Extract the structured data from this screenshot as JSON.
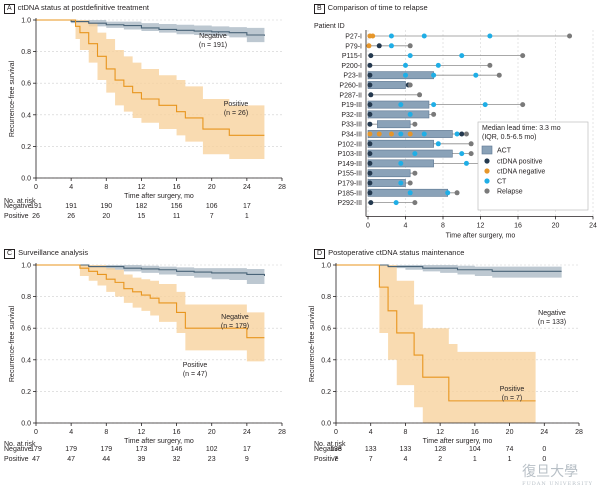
{
  "panels": {
    "A": {
      "letter": "A",
      "title": "ctDNA status at postdefinitive treatment"
    },
    "B": {
      "letter": "B",
      "title": "Comparison of time to relapse"
    },
    "C": {
      "letter": "C",
      "title": "Surveillance analysis"
    },
    "D": {
      "letter": "D",
      "title": "Postoperative ctDNA status maintenance"
    }
  },
  "risk_labels": {
    "header": "No. at risk",
    "negative": "Negative",
    "positive": "Positive"
  },
  "watermark": {
    "main": "復旦大學",
    "sub": "FUDAN UNIVERSITY"
  },
  "colors": {
    "negative": "#4a6478",
    "negative_band": "#a7b5c1",
    "positive": "#e8951e",
    "positive_band": "#f8d29e",
    "act_bar": "#8aa2b8",
    "ct": "#1faee6",
    "ctdna_negative": "#e6962a",
    "ctdna_positive": "#24394f",
    "relapse": "#7a7a7a"
  },
  "chart_data": [
    {
      "id": "A",
      "type": "line",
      "xlabel": "Time after surgery, mo",
      "ylabel": "Recurrence-free survival",
      "xlim": [
        0,
        28
      ],
      "ylim": [
        0,
        1
      ],
      "xticks": [
        0,
        4,
        8,
        12,
        16,
        20,
        24,
        28
      ],
      "yticks": [
        0,
        0.2,
        0.4,
        0.6,
        0.8,
        1.0
      ],
      "series": [
        {
          "name": "Negative",
          "label": "Negative\n(n = 191)",
          "x": [
            0,
            2,
            4,
            6,
            8,
            10,
            12,
            14,
            16,
            18,
            20,
            22,
            24,
            26
          ],
          "y": [
            1,
            1,
            0.99,
            0.98,
            0.97,
            0.965,
            0.95,
            0.94,
            0.935,
            0.93,
            0.925,
            0.92,
            0.905,
            0.9
          ],
          "lower": [
            1,
            1,
            0.98,
            0.96,
            0.95,
            0.94,
            0.93,
            0.92,
            0.91,
            0.905,
            0.9,
            0.89,
            0.86,
            0.81
          ],
          "upper": [
            1,
            1,
            1,
            1,
            0.99,
            0.99,
            0.98,
            0.975,
            0.97,
            0.965,
            0.96,
            0.955,
            0.95,
            0.95
          ]
        },
        {
          "name": "Positive",
          "label": "Positive\n(n = 26)",
          "x": [
            0,
            4.5,
            5,
            6,
            7,
            8,
            9,
            10,
            11,
            12,
            14,
            16,
            17,
            19,
            22,
            24,
            26
          ],
          "y": [
            1,
            0.96,
            0.92,
            0.85,
            0.77,
            0.69,
            0.62,
            0.58,
            0.54,
            0.5,
            0.46,
            0.42,
            0.38,
            0.31,
            0.27,
            0.27,
            0.27
          ],
          "lower": [
            1,
            0.88,
            0.81,
            0.73,
            0.62,
            0.54,
            0.46,
            0.42,
            0.38,
            0.35,
            0.31,
            0.27,
            0.23,
            0.15,
            0.12,
            0.12,
            0.12
          ],
          "upper": [
            1,
            1,
            1,
            0.98,
            0.92,
            0.88,
            0.81,
            0.77,
            0.73,
            0.69,
            0.65,
            0.62,
            0.58,
            0.5,
            0.46,
            0.46,
            0.46
          ]
        }
      ],
      "risk": {
        "times": [
          0,
          4,
          8,
          12,
          16,
          20,
          24
        ],
        "negative": [
          191,
          191,
          190,
          182,
          156,
          106,
          17
        ],
        "positive": [
          26,
          26,
          20,
          15,
          11,
          7,
          1
        ]
      }
    },
    {
      "id": "B",
      "type": "scatter",
      "ylabel": "Patient ID",
      "xlabel": "Time after surgery, mo",
      "xlim": [
        0,
        24
      ],
      "xticks": [
        0,
        4,
        8,
        12,
        16,
        20,
        24
      ],
      "legend": {
        "title": "Median lead time: 3.3 mo\n(IQR, 0.5-6.5 mo)",
        "items": [
          "ACT",
          "ctDNA positive",
          "ctDNA negative",
          "CT",
          "Relapse"
        ]
      },
      "patients": [
        {
          "id": "P27-I",
          "span": 21.5,
          "act": null,
          "ctdna_pos": [],
          "ctdna_neg": [
            0.2,
            0.5
          ],
          "ct": [
            2.5,
            6,
            13
          ],
          "relapse": 21.5
        },
        {
          "id": "P79-I",
          "span": 4.5,
          "act": null,
          "ctdna_pos": [
            1.2
          ],
          "ctdna_neg": [
            0.1
          ],
          "ct": [
            2.5
          ],
          "relapse": 4.5
        },
        {
          "id": "P115-I",
          "span": 16.5,
          "act": null,
          "ctdna_pos": [
            0.3
          ],
          "ctdna_neg": [],
          "ct": [
            4.5,
            10
          ],
          "relapse": 16.5
        },
        {
          "id": "P200-I",
          "span": 13,
          "act": null,
          "ctdna_pos": [
            0.2
          ],
          "ctdna_neg": [],
          "ct": [
            4,
            7.5
          ],
          "relapse": 13
        },
        {
          "id": "P23-II",
          "span": 14,
          "act": [
            0,
            7
          ],
          "ctdna_pos": [
            0.2
          ],
          "ctdna_neg": [],
          "ct": [
            4,
            7,
            11.5
          ],
          "relapse": 14
        },
        {
          "id": "P260-II",
          "span": 4.5,
          "act": [
            0,
            4
          ],
          "ctdna_pos": [
            0.2,
            4.3
          ],
          "ctdna_neg": [],
          "ct": [],
          "relapse": 4.5
        },
        {
          "id": "P287-II",
          "span": 5.5,
          "act": null,
          "ctdna_pos": [
            0.3
          ],
          "ctdna_neg": [],
          "ct": [],
          "relapse": 5.5
        },
        {
          "id": "P19-III",
          "span": 16.5,
          "act": [
            0,
            6.5
          ],
          "ctdna_pos": [
            0.2
          ],
          "ctdna_neg": [],
          "ct": [
            3.5,
            7,
            12.5
          ],
          "relapse": 16.5
        },
        {
          "id": "P32-III",
          "span": 7,
          "act": [
            0,
            6.5
          ],
          "ctdna_pos": [
            0.2
          ],
          "ctdna_neg": [],
          "ct": [
            4.5
          ],
          "relapse": 7
        },
        {
          "id": "P33-III",
          "span": 5,
          "act": [
            1,
            4.5
          ],
          "ctdna_pos": [
            0.2
          ],
          "ctdna_neg": [],
          "ct": [],
          "relapse": 5
        },
        {
          "id": "P34-III",
          "span": 10.5,
          "act": [
            0,
            9
          ],
          "ctdna_pos": [
            10
          ],
          "ctdna_neg": [
            0.2,
            1.2,
            2.5,
            4.5
          ],
          "ct": [
            3.5,
            6,
            9.5
          ],
          "relapse": 10.5
        },
        {
          "id": "P102-III",
          "span": 11,
          "act": [
            0,
            7
          ],
          "ctdna_pos": [
            0.2
          ],
          "ctdna_neg": [],
          "ct": [
            7.5
          ],
          "relapse": 11
        },
        {
          "id": "P103-III",
          "span": 11,
          "act": [
            0,
            9
          ],
          "ctdna_pos": [
            0.2
          ],
          "ctdna_neg": [],
          "ct": [
            5,
            10
          ],
          "relapse": 11
        },
        {
          "id": "P149-III",
          "span": 14,
          "act": [
            0,
            7
          ],
          "ctdna_pos": [
            0.2
          ],
          "ctdna_neg": [],
          "ct": [
            3.5,
            10.5
          ],
          "relapse": 14
        },
        {
          "id": "P155-III",
          "span": 5,
          "act": [
            0,
            4.5
          ],
          "ctdna_pos": [
            0.2
          ],
          "ctdna_neg": [],
          "ct": [],
          "relapse": 5
        },
        {
          "id": "P179-III",
          "span": 4.5,
          "act": [
            0,
            4
          ],
          "ctdna_pos": [
            0.2
          ],
          "ctdna_neg": [],
          "ct": [
            3.5
          ],
          "relapse": 4.5
        },
        {
          "id": "P185-III",
          "span": 9.5,
          "act": [
            0,
            8.5
          ],
          "ctdna_pos": [
            0.2
          ],
          "ctdna_neg": [],
          "ct": [
            4.5,
            8.5
          ],
          "relapse": 9.5
        },
        {
          "id": "P292-III",
          "span": 5,
          "act": null,
          "ctdna_pos": [
            0.3
          ],
          "ctdna_neg": [],
          "ct": [
            3
          ],
          "relapse": 5
        }
      ]
    },
    {
      "id": "C",
      "type": "line",
      "xlabel": "Time after surgery, mo",
      "ylabel": "Recurrence-free survival",
      "xlim": [
        0,
        28
      ],
      "ylim": [
        0,
        1
      ],
      "xticks": [
        0,
        4,
        8,
        12,
        16,
        20,
        24,
        28
      ],
      "yticks": [
        0,
        0.2,
        0.4,
        0.6,
        0.8,
        1.0
      ],
      "series": [
        {
          "name": "Negative",
          "label": "Negative\n(n = 179)",
          "x": [
            0,
            4,
            6,
            8,
            10,
            12,
            14,
            16,
            18,
            20,
            22,
            24,
            26
          ],
          "y": [
            1,
            1,
            0.99,
            0.99,
            0.98,
            0.975,
            0.97,
            0.96,
            0.955,
            0.95,
            0.95,
            0.94,
            0.93
          ],
          "lower": [
            1,
            1,
            0.98,
            0.97,
            0.96,
            0.95,
            0.94,
            0.93,
            0.92,
            0.91,
            0.905,
            0.88,
            0.86
          ],
          "upper": [
            1,
            1,
            1,
            1,
            1,
            0.995,
            0.99,
            0.985,
            0.98,
            0.98,
            0.98,
            0.975,
            0.97
          ]
        },
        {
          "name": "Positive",
          "label": "Positive\n(n = 47)",
          "x": [
            0,
            4,
            5,
            6,
            7,
            8,
            9,
            10,
            11,
            12,
            13,
            14,
            16,
            17,
            18,
            20,
            22,
            24,
            26
          ],
          "y": [
            1,
            1,
            0.98,
            0.96,
            0.94,
            0.91,
            0.89,
            0.85,
            0.83,
            0.81,
            0.79,
            0.76,
            0.7,
            0.6,
            0.6,
            0.6,
            0.6,
            0.54,
            0.54
          ],
          "lower": [
            1,
            1,
            0.93,
            0.9,
            0.87,
            0.83,
            0.8,
            0.76,
            0.73,
            0.71,
            0.68,
            0.64,
            0.57,
            0.46,
            0.46,
            0.46,
            0.46,
            0.39,
            0.39
          ],
          "upper": [
            1,
            1,
            1,
            1,
            1,
            0.98,
            0.97,
            0.94,
            0.92,
            0.91,
            0.9,
            0.88,
            0.83,
            0.75,
            0.75,
            0.75,
            0.75,
            0.7,
            0.7
          ]
        }
      ],
      "risk": {
        "times": [
          0,
          4,
          8,
          12,
          16,
          20,
          24
        ],
        "negative": [
          179,
          179,
          179,
          173,
          146,
          102,
          17
        ],
        "positive": [
          47,
          47,
          44,
          39,
          32,
          23,
          9
        ]
      }
    },
    {
      "id": "D",
      "type": "line",
      "xlabel": "Time after surgery, mo",
      "ylabel": "Recurrence-free survival",
      "xlim": [
        0,
        28
      ],
      "ylim": [
        0,
        1
      ],
      "xticks": [
        0,
        4,
        8,
        12,
        16,
        20,
        24,
        28
      ],
      "yticks": [
        0,
        0.2,
        0.4,
        0.6,
        0.8,
        1.0
      ],
      "series": [
        {
          "name": "Negative",
          "label": "Negative\n(n = 133)",
          "x": [
            0,
            4,
            6,
            8,
            10,
            12,
            14,
            16,
            18,
            20,
            22,
            24,
            26
          ],
          "y": [
            1,
            1,
            0.99,
            0.99,
            0.98,
            0.98,
            0.97,
            0.97,
            0.96,
            0.96,
            0.96,
            0.96,
            0.96
          ],
          "lower": [
            1,
            1,
            0.98,
            0.97,
            0.96,
            0.95,
            0.94,
            0.93,
            0.92,
            0.92,
            0.92,
            0.92,
            0.92
          ],
          "upper": [
            1,
            1,
            1,
            1,
            1,
            1,
            0.995,
            0.99,
            0.99,
            0.99,
            0.99,
            0.99,
            0.99
          ]
        },
        {
          "name": "Positive",
          "label": "Positive\n(n = 7)",
          "x": [
            0,
            4.5,
            5,
            6,
            7,
            9,
            10,
            12.5,
            13,
            14,
            16,
            18,
            20,
            23
          ],
          "y": [
            1,
            1,
            0.86,
            0.71,
            0.57,
            0.43,
            0.29,
            0.29,
            0.14,
            0.14,
            0.14,
            0.14,
            0.14,
            0.14
          ],
          "lower": [
            1,
            1,
            0.57,
            0.4,
            0.24,
            0.1,
            0,
            0,
            0,
            0,
            0,
            0,
            0,
            0
          ],
          "upper": [
            1,
            1,
            1,
            1,
            0.9,
            0.75,
            0.6,
            0.6,
            0.5,
            0.45,
            0.45,
            0.45,
            0.45,
            0.45
          ]
        }
      ],
      "risk": {
        "times": [
          0,
          4,
          8,
          12,
          16,
          20,
          24
        ],
        "negative": [
          133,
          133,
          133,
          128,
          104,
          74,
          0
        ],
        "positive": [
          7,
          7,
          4,
          2,
          1,
          1,
          0
        ]
      }
    }
  ]
}
